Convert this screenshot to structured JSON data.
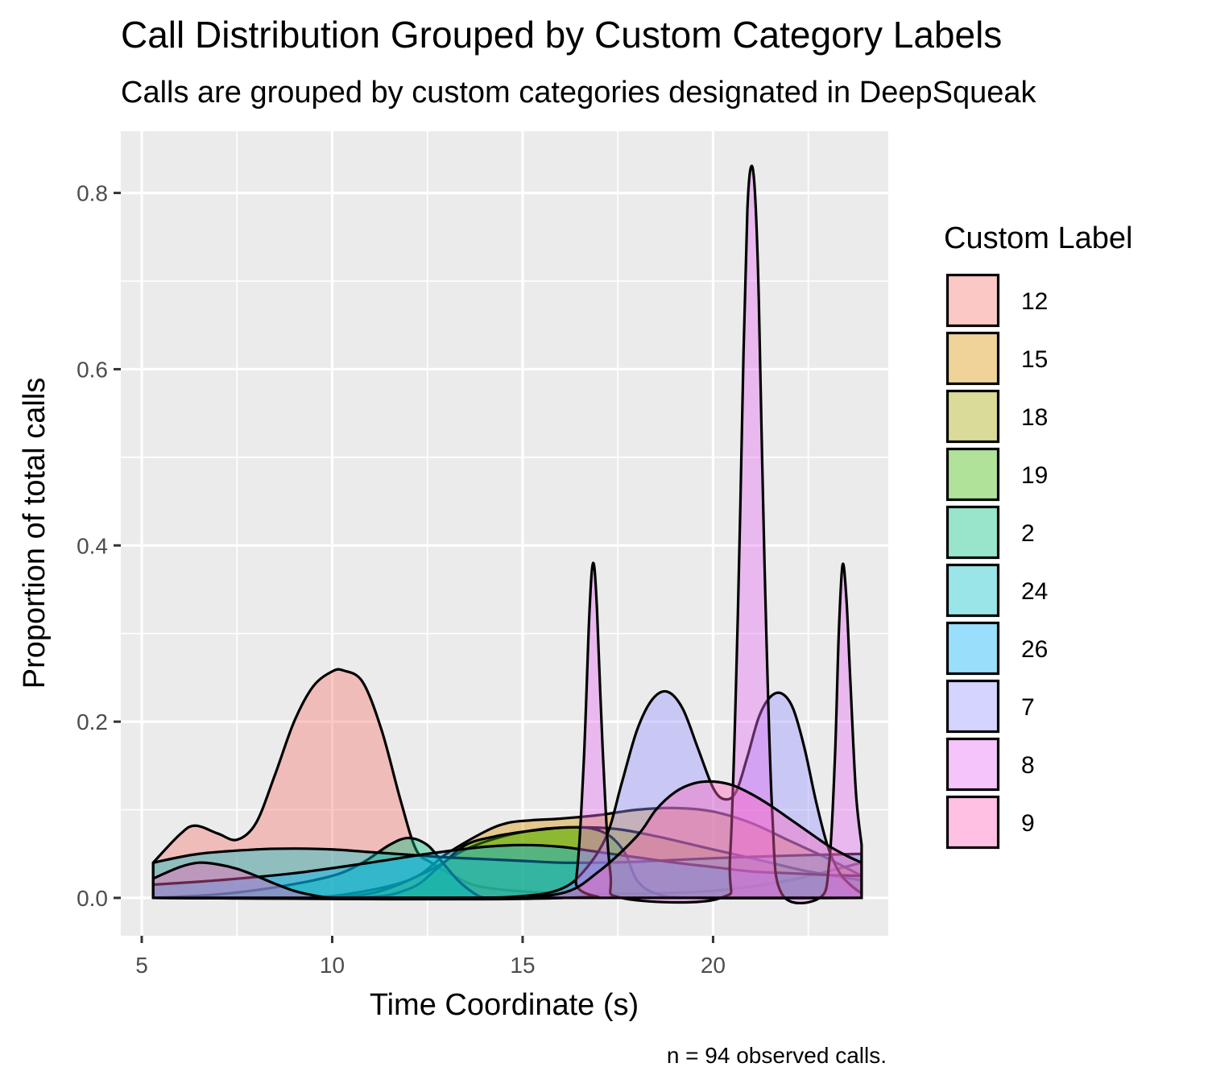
{
  "chart_data": {
    "type": "area",
    "subtype": "density",
    "title": "Call Distribution Grouped by Custom Category Labels",
    "subtitle": "Calls are grouped by custom categories designated in DeepSqueak",
    "xlabel": "Time Coordinate (s)",
    "ylabel": "Proportion of total calls",
    "caption": "n = 94 observed calls.",
    "xlim": [
      4.45,
      24.6
    ],
    "ylim": [
      -0.043,
      0.87
    ],
    "x_ticks": [
      5,
      10,
      15,
      20
    ],
    "y_ticks": [
      0.0,
      0.2,
      0.4,
      0.6,
      0.8
    ],
    "x_tick_labels": [
      "5",
      "10",
      "15",
      "20"
    ],
    "y_tick_labels": [
      "0.0",
      "0.2",
      "0.4",
      "0.6",
      "0.8"
    ],
    "grid": true,
    "legend": {
      "title": "Custom Label",
      "position": "right"
    },
    "series": [
      {
        "name": "12",
        "color": "#F8766D",
        "x": [
          5.3,
          6.0,
          6.4,
          7.0,
          7.5,
          8.0,
          8.5,
          9.0,
          9.5,
          10.0,
          10.3,
          10.8,
          11.3,
          11.8,
          12.2,
          12.6,
          13.2,
          14.0,
          16.0,
          18.0,
          20.0,
          22.0,
          23.9
        ],
        "y": [
          0.04,
          0.072,
          0.082,
          0.073,
          0.066,
          0.085,
          0.14,
          0.2,
          0.24,
          0.257,
          0.258,
          0.245,
          0.19,
          0.11,
          0.055,
          0.04,
          0.025,
          0.012,
          0.005,
          0.005,
          0.008,
          0.02,
          0.04
        ]
      },
      {
        "name": "15",
        "color": "#D89000",
        "x": [
          5.3,
          8.0,
          10.0,
          12.0,
          13.0,
          14.0,
          14.6,
          15.2,
          16.0,
          17.0,
          18.0,
          19.0,
          20.0,
          21.0,
          22.0,
          23.0,
          23.9
        ],
        "y": [
          0.0,
          0.0,
          0.002,
          0.02,
          0.05,
          0.075,
          0.085,
          0.088,
          0.09,
          0.094,
          0.1,
          0.102,
          0.098,
          0.085,
          0.065,
          0.045,
          0.025
        ]
      },
      {
        "name": "18",
        "color": "#A3A500",
        "x": [
          5.3,
          9.0,
          11.0,
          12.5,
          13.5,
          14.5,
          15.5,
          16.5,
          17.5,
          18.5,
          19.5,
          20.5,
          21.5,
          22.5,
          23.9
        ],
        "y": [
          0.0,
          0.0,
          0.005,
          0.03,
          0.055,
          0.07,
          0.078,
          0.08,
          0.078,
          0.07,
          0.06,
          0.05,
          0.04,
          0.03,
          0.02
        ]
      },
      {
        "name": "19",
        "color": "#39B600",
        "x": [
          5.3,
          10.5,
          12.0,
          12.8,
          13.5,
          14.3,
          15.0,
          15.6,
          16.2,
          16.8,
          17.3,
          17.7,
          18.0,
          18.5,
          19.5,
          23.9
        ],
        "y": [
          0.0,
          0.0,
          0.01,
          0.035,
          0.06,
          0.07,
          0.075,
          0.078,
          0.08,
          0.079,
          0.07,
          0.05,
          0.02,
          0.005,
          0.0,
          0.0
        ]
      },
      {
        "name": "2",
        "color": "#00BF7D",
        "x": [
          5.3,
          7.0,
          8.5,
          10.0,
          10.8,
          11.5,
          12.0,
          12.5,
          12.9,
          13.3,
          13.7,
          14.0,
          14.5,
          23.9
        ],
        "y": [
          0.0,
          0.004,
          0.012,
          0.025,
          0.04,
          0.06,
          0.068,
          0.06,
          0.04,
          0.02,
          0.006,
          0.0,
          0.0,
          0.0
        ]
      },
      {
        "name": "24",
        "color": "#00BFC4",
        "x": [
          5.3,
          6.5,
          8.0,
          9.0,
          10.0,
          11.0,
          12.0,
          13.0,
          14.0,
          15.0,
          16.0,
          17.0,
          18.0,
          20.0,
          22.0,
          23.9
        ],
        "y": [
          0.04,
          0.05,
          0.055,
          0.056,
          0.055,
          0.052,
          0.049,
          0.046,
          0.044,
          0.042,
          0.04,
          0.04,
          0.041,
          0.045,
          0.048,
          0.05
        ]
      },
      {
        "name": "26",
        "color": "#00B0F6",
        "x": [
          5.3,
          7.0,
          9.0,
          11.0,
          12.5,
          14.0,
          15.0,
          16.0,
          17.0,
          18.0,
          19.0,
          20.0,
          21.0,
          22.0,
          23.0,
          23.9
        ],
        "y": [
          0.015,
          0.02,
          0.028,
          0.04,
          0.05,
          0.058,
          0.06,
          0.058,
          0.052,
          0.046,
          0.04,
          0.035,
          0.03,
          0.028,
          0.026,
          0.025
        ]
      },
      {
        "name": "7",
        "color": "#9590FF",
        "x": [
          5.3,
          13.0,
          15.0,
          16.0,
          16.6,
          17.2,
          17.6,
          18.0,
          18.4,
          18.8,
          19.2,
          19.6,
          20.0,
          20.3,
          20.6,
          20.9,
          21.2,
          21.5,
          21.8,
          22.1,
          22.4,
          22.7,
          23.0,
          23.3,
          23.6,
          23.9
        ],
        "y": [
          0.0,
          0.0,
          0.002,
          0.01,
          0.03,
          0.07,
          0.13,
          0.19,
          0.225,
          0.234,
          0.215,
          0.17,
          0.125,
          0.112,
          0.12,
          0.16,
          0.205,
          0.228,
          0.232,
          0.215,
          0.17,
          0.11,
          0.06,
          0.03,
          0.015,
          0.005
        ]
      },
      {
        "name": "8",
        "color": "#E76BF3",
        "x": [
          5.3,
          16.1,
          16.4,
          16.6,
          16.75,
          16.85,
          16.95,
          17.1,
          17.3,
          17.6,
          20.2,
          20.45,
          20.65,
          20.8,
          20.9,
          21.0,
          21.1,
          21.2,
          21.35,
          21.55,
          21.8,
          22.8,
          23.05,
          23.2,
          23.3,
          23.4,
          23.5,
          23.6,
          23.75,
          23.9
        ],
        "y": [
          0.0,
          0.0,
          0.02,
          0.15,
          0.32,
          0.38,
          0.33,
          0.17,
          0.03,
          0.0,
          0.0,
          0.05,
          0.32,
          0.62,
          0.78,
          0.83,
          0.8,
          0.68,
          0.38,
          0.1,
          0.005,
          0.0,
          0.04,
          0.16,
          0.3,
          0.378,
          0.34,
          0.25,
          0.12,
          0.06
        ]
      },
      {
        "name": "9",
        "color": "#FF62BC",
        "x": [
          5.3,
          6.0,
          6.5,
          7.0,
          7.5,
          8.0,
          8.5,
          9.0,
          9.5,
          10.0,
          11.0,
          14.0,
          16.0,
          17.0,
          18.0,
          18.5,
          19.0,
          19.5,
          20.0,
          20.5,
          21.0,
          21.5,
          22.0,
          22.5,
          23.0,
          23.5,
          23.9
        ],
        "y": [
          0.022,
          0.035,
          0.04,
          0.038,
          0.033,
          0.025,
          0.016,
          0.008,
          0.003,
          0.0,
          0.0,
          0.0,
          0.005,
          0.03,
          0.07,
          0.1,
          0.12,
          0.13,
          0.132,
          0.128,
          0.118,
          0.105,
          0.09,
          0.075,
          0.06,
          0.048,
          0.04
        ]
      }
    ]
  }
}
